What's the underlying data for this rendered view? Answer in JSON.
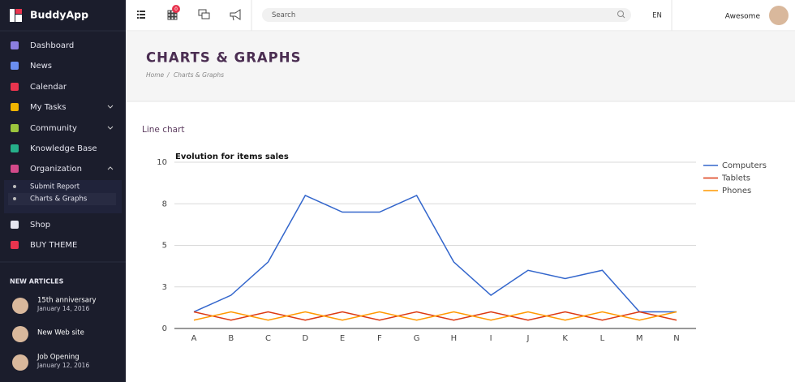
{
  "app": {
    "brand": "BuddyApp"
  },
  "topbar": {
    "badge": "0",
    "search": "Search",
    "language": "EN",
    "user": "Awesome"
  },
  "sidebar": {
    "menu": [
      "Dashboard",
      "News",
      "Calendar",
      "My Tasks",
      "Community",
      "Knowledge Base",
      "Organization"
    ],
    "submenu": [
      "Submit Report",
      "Charts & Graphs"
    ],
    "menu2": [
      "Shop",
      "BUY THEME"
    ],
    "articles_heading": "NEW ARTICLES",
    "articles": [
      {
        "title": "15th anniversary",
        "date": "January 14, 2016"
      },
      {
        "title": "New Web site"
      },
      {
        "title": "Job Opening",
        "date": "January 12, 2016"
      }
    ]
  },
  "header": {
    "title": "CHARTS & GRAPHS",
    "breadcrumb": [
      "Home",
      "Charts & Graphs"
    ],
    "separator": "/"
  },
  "section_title": "Line chart",
  "chart_data": {
    "type": "line",
    "title": "Evolution for items sales",
    "categories": [
      "A",
      "B",
      "C",
      "D",
      "E",
      "F",
      "G",
      "H",
      "I",
      "J",
      "K",
      "L",
      "M",
      "N"
    ],
    "series": [
      {
        "name": "Computers",
        "color": "#3366cc",
        "values": [
          1,
          2,
          4,
          8,
          7,
          7,
          8,
          4,
          2,
          3.5,
          3,
          3.5,
          1,
          1
        ]
      },
      {
        "name": "Tablets",
        "color": "#dc3912",
        "values": [
          1,
          0.5,
          1,
          0.5,
          1,
          0.5,
          1,
          0.5,
          1,
          0.5,
          1,
          0.5,
          1,
          0.5
        ]
      },
      {
        "name": "Phones",
        "color": "#ff9900",
        "values": [
          0.5,
          1,
          0.5,
          1,
          0.5,
          1,
          0.5,
          1,
          0.5,
          1,
          0.5,
          1,
          0.5,
          1
        ]
      }
    ],
    "ylim": [
      0,
      10
    ],
    "yticks": [
      0,
      {
        "value": 2.5,
        "label": "3"
      },
      5,
      {
        "value": 7.5,
        "label": "8"
      },
      10
    ],
    "grid": true,
    "legend": "right"
  }
}
